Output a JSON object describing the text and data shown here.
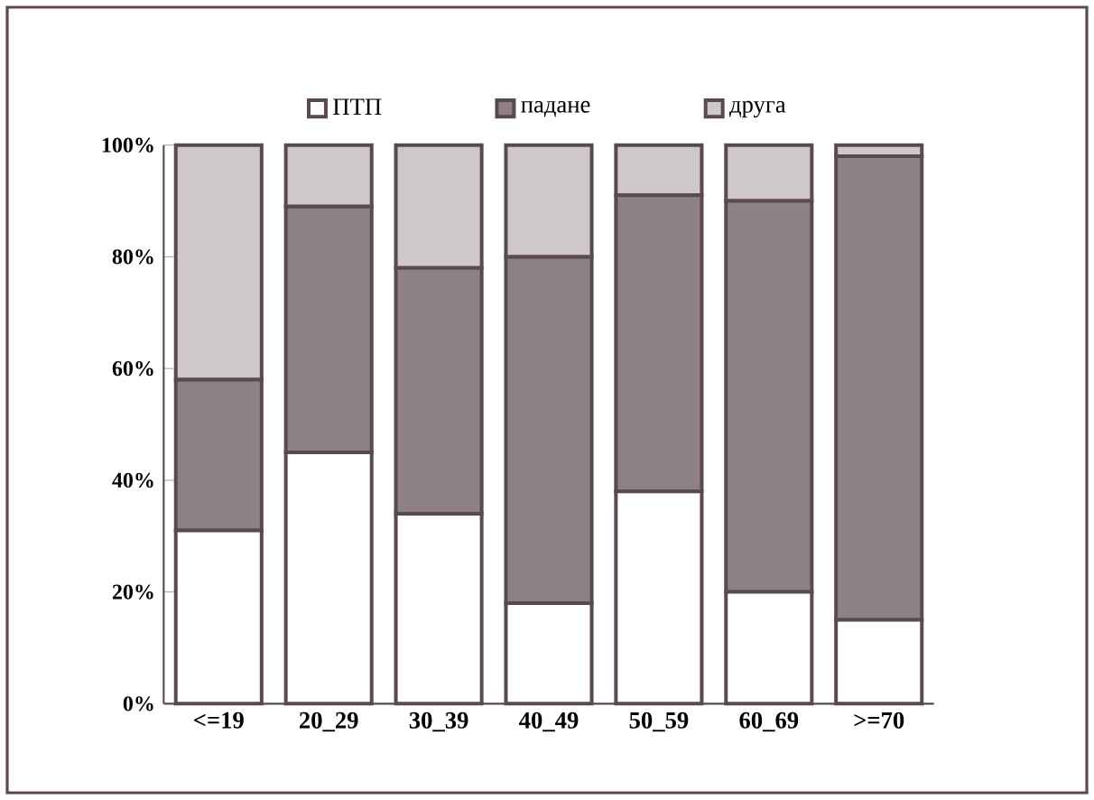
{
  "chart_data": {
    "type": "bar",
    "stacked": true,
    "legend": "top",
    "grid": false,
    "categories": [
      "<=19",
      "20_29",
      "30_39",
      "40_49",
      "50_59",
      "60_69",
      ">=70"
    ],
    "series": [
      {
        "name": "ПТП",
        "color": "#ffffff",
        "values": [
          31,
          45,
          34,
          18,
          38,
          20,
          15
        ]
      },
      {
        "name": "падане",
        "color": "#8c8286",
        "values": [
          27,
          44,
          44,
          62,
          53,
          70,
          83
        ]
      },
      {
        "name": "друга",
        "color": "#cfc8c8",
        "values": [
          42,
          11,
          22,
          20,
          9,
          10,
          2
        ]
      }
    ],
    "ylim": [
      0,
      100
    ],
    "yticks": [
      {
        "value": 0,
        "label": "0%"
      },
      {
        "value": 20,
        "label": "20%"
      },
      {
        "value": 40,
        "label": "40%"
      },
      {
        "value": 60,
        "label": "60%"
      },
      {
        "value": 80,
        "label": "80%"
      },
      {
        "value": 100,
        "label": "100%"
      }
    ]
  }
}
